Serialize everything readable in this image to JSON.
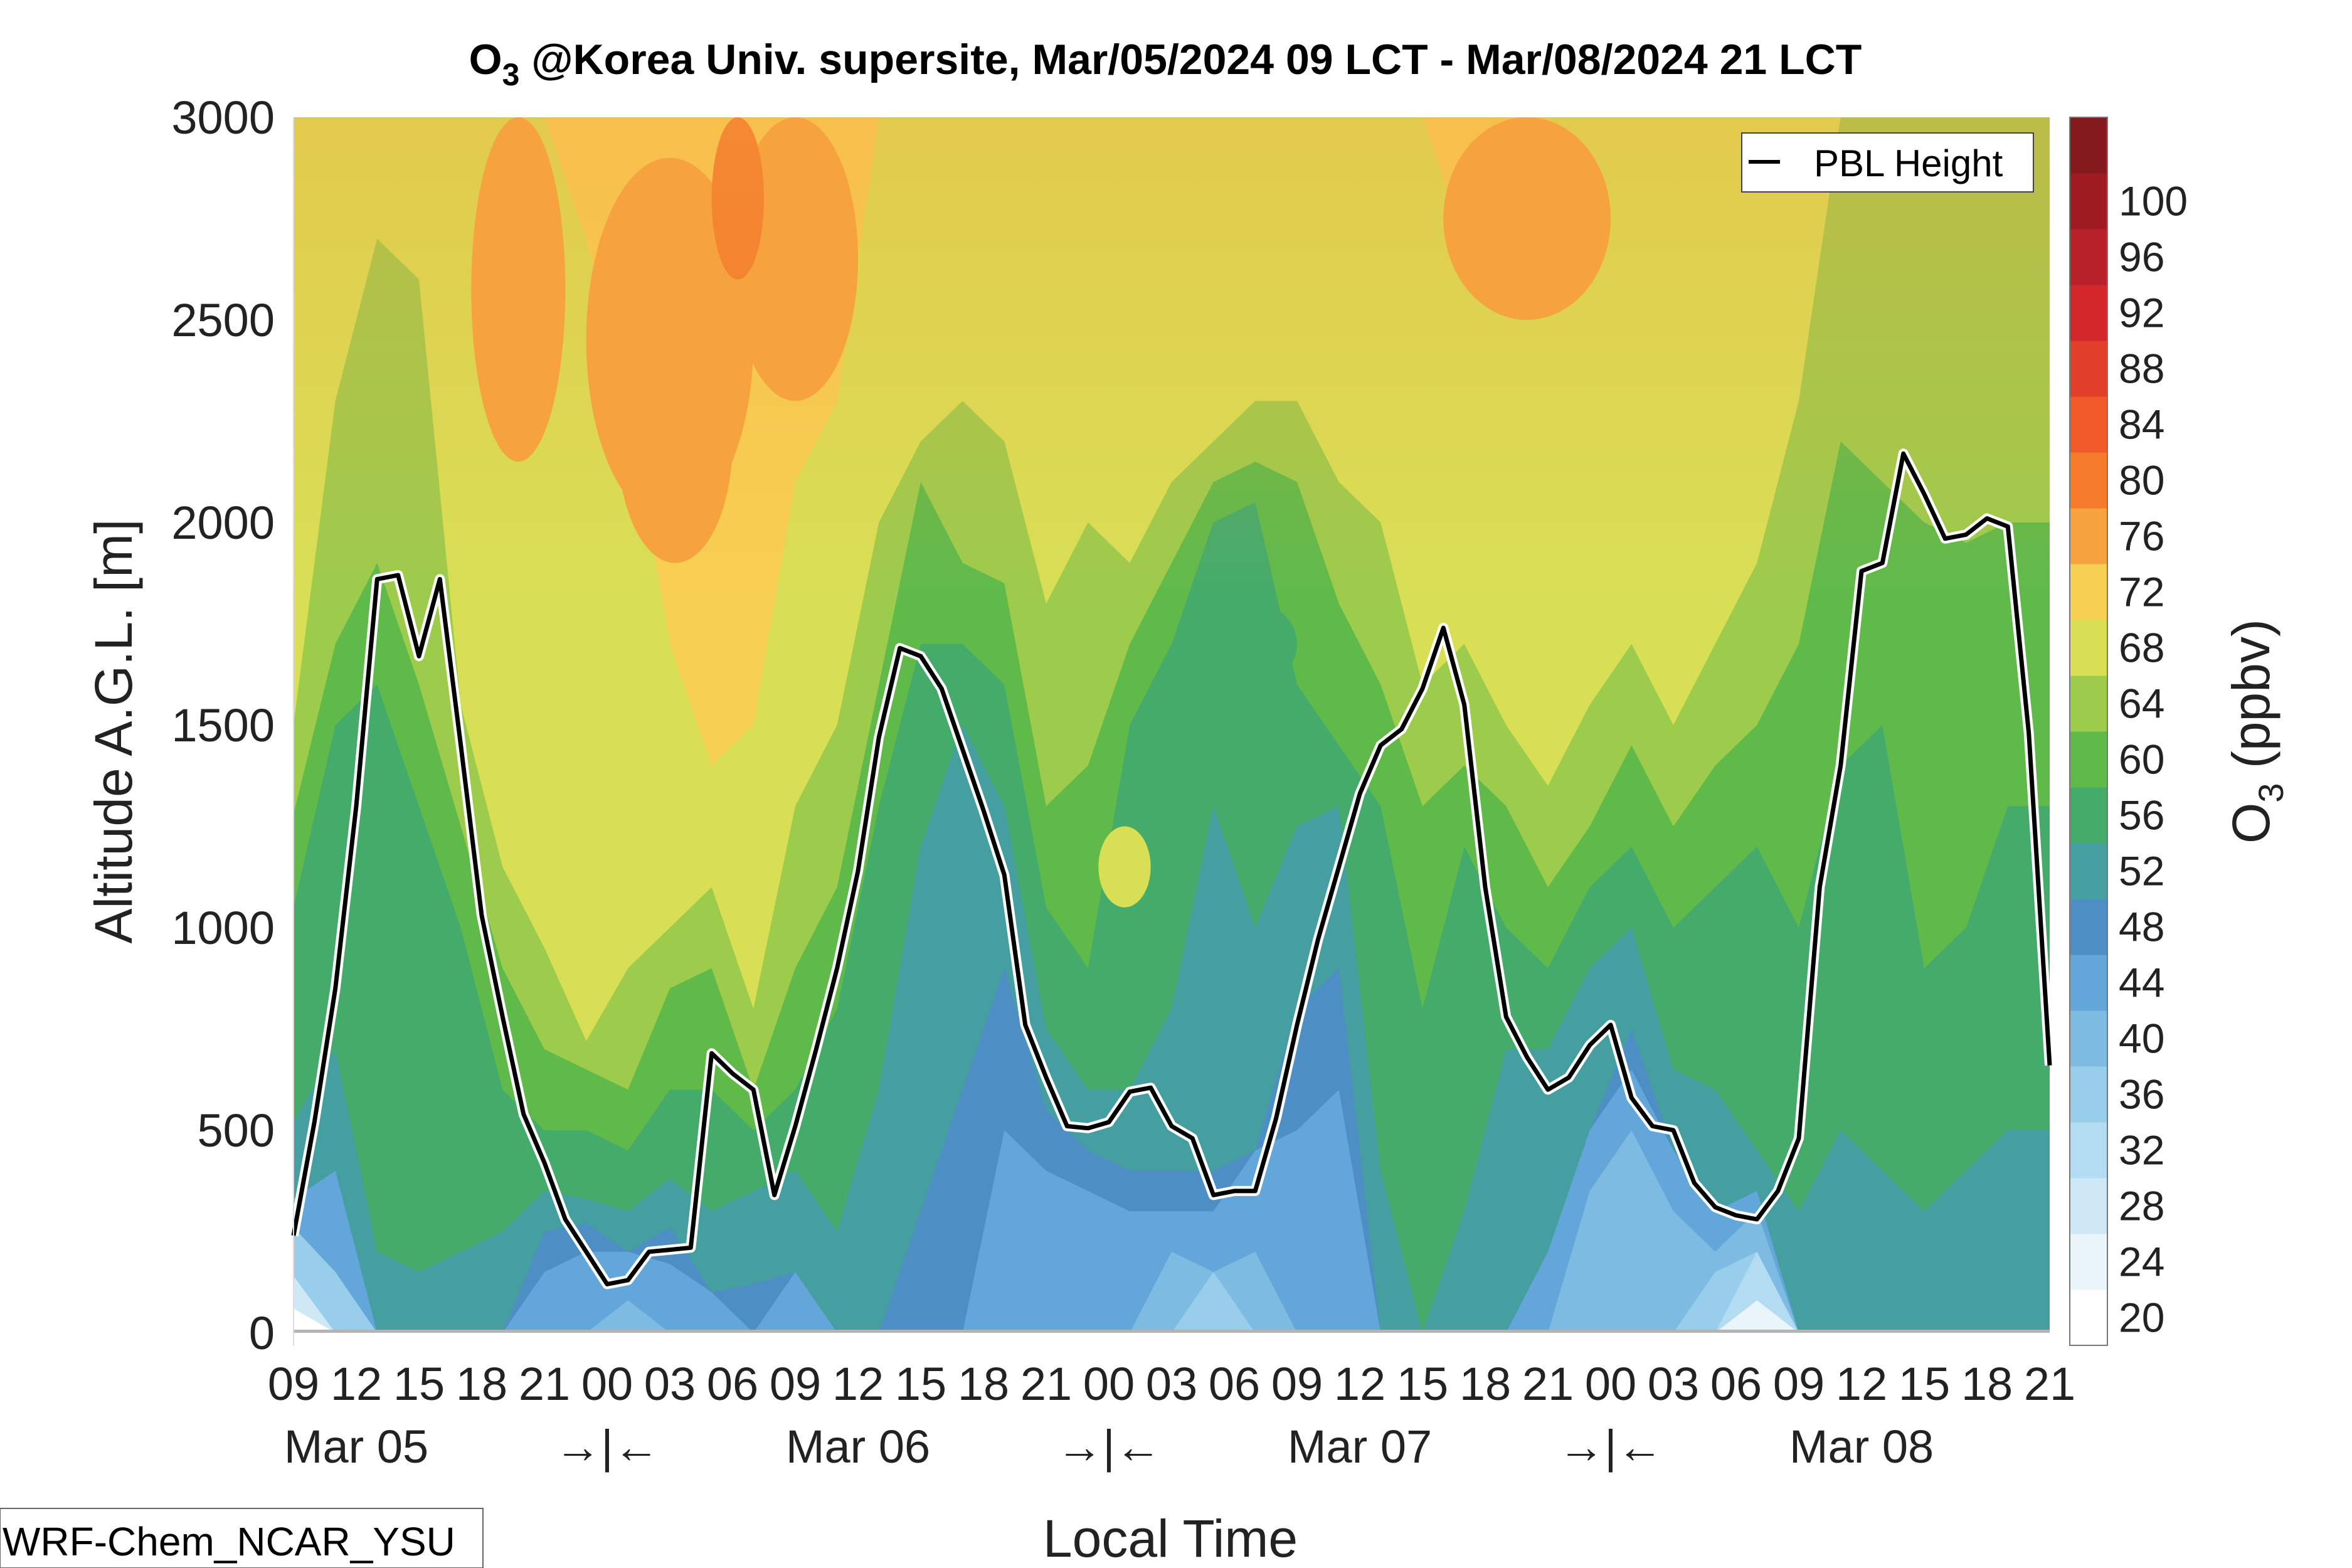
{
  "chart_data": {
    "type": "heatmap",
    "title_species": "O",
    "title_subscript": "3",
    "title_rest": " @Korea Univ. supersite, Mar/05/2024 09 LCT - Mar/08/2024 21 LCT",
    "xlabel": "Local Time",
    "ylabel": "Altitude A.G.L. [m]",
    "ylim": [
      0,
      3000
    ],
    "yticks": [
      "0",
      "500",
      "1000",
      "1500",
      "2000",
      "2500",
      "3000"
    ],
    "xticks": [
      "09",
      "12",
      "15",
      "18",
      "21",
      "00",
      "03",
      "06",
      "09",
      "12",
      "15",
      "18",
      "21",
      "00",
      "03",
      "06",
      "09",
      "12",
      "15",
      "18",
      "21",
      "00",
      "03",
      "06",
      "09",
      "12",
      "15",
      "18",
      "21"
    ],
    "date_labels": [
      "Mar 05",
      "Mar 06",
      "Mar 07",
      "Mar 08"
    ],
    "night_markers": [
      "→|←",
      "→|←",
      "→|←"
    ],
    "colorbar": {
      "label_species": "O",
      "label_subscript": "3",
      "label_unit": " (ppbv)",
      "ticks": [
        "20",
        "24",
        "28",
        "32",
        "36",
        "40",
        "44",
        "48",
        "52",
        "56",
        "60",
        "64",
        "68",
        "72",
        "76",
        "80",
        "84",
        "88",
        "92",
        "96",
        "100"
      ],
      "levels": [
        20,
        24,
        28,
        32,
        36,
        40,
        44,
        48,
        52,
        56,
        60,
        64,
        68,
        72,
        76,
        80,
        84,
        88,
        92,
        96,
        100,
        104
      ],
      "colors": [
        "#ffffff",
        "#e9f4fb",
        "#cfe8f6",
        "#b3dcf2",
        "#98cdec",
        "#7dbbe3",
        "#63a6da",
        "#4d8fc4",
        "#459ea0",
        "#44ab6b",
        "#5fba4a",
        "#9dcb4c",
        "#d8df55",
        "#f7cf52",
        "#f6a23e",
        "#f47a2c",
        "#ef5a28",
        "#e23f2a",
        "#d2282b",
        "#b8202a",
        "#9e1b22",
        "#851a1e"
      ]
    },
    "legend": {
      "label": "PBL Height",
      "position": "top-right"
    },
    "pbl_height": {
      "x_hours": [
        0,
        1,
        2,
        3,
        4,
        5,
        6,
        7,
        8,
        9,
        10,
        11,
        12,
        13,
        14,
        15,
        16,
        17,
        18,
        19,
        20,
        21,
        22,
        23,
        24,
        25,
        26,
        27,
        28,
        29,
        30,
        31,
        32,
        33,
        34,
        35,
        36,
        37,
        38,
        39,
        40,
        41,
        42,
        43,
        44,
        45,
        46,
        47,
        48,
        49,
        50,
        51,
        52,
        53,
        54,
        55,
        56,
        57,
        58,
        59,
        60,
        61,
        62,
        63,
        64,
        65,
        66,
        67,
        68,
        69,
        70,
        71,
        72,
        73,
        74,
        75,
        76,
        77,
        78,
        79,
        80,
        81,
        82,
        83,
        84
      ],
      "y_m": [
        240,
        520,
        850,
        1300,
        1860,
        1870,
        1670,
        1860,
        1450,
        1030,
        780,
        540,
        420,
        280,
        200,
        120,
        130,
        200,
        205,
        210,
        690,
        640,
        600,
        340,
        510,
        700,
        900,
        1140,
        1470,
        1690,
        1670,
        1590,
        1440,
        1290,
        1130,
        760,
        630,
        510,
        505,
        520,
        595,
        605,
        510,
        480,
        340,
        350,
        350,
        530,
        760,
        970,
        1150,
        1330,
        1450,
        1490,
        1590,
        1740,
        1550,
        1100,
        780,
        680,
        600,
        630,
        710,
        760,
        580,
        510,
        500,
        370,
        310,
        290,
        280,
        350,
        480,
        1100,
        1400,
        1880,
        1900,
        2170,
        2070,
        1960,
        1970,
        2010,
        1990,
        1480,
        660
      ]
    },
    "model_label": "WRF-Chem_NCAR_YSU"
  }
}
